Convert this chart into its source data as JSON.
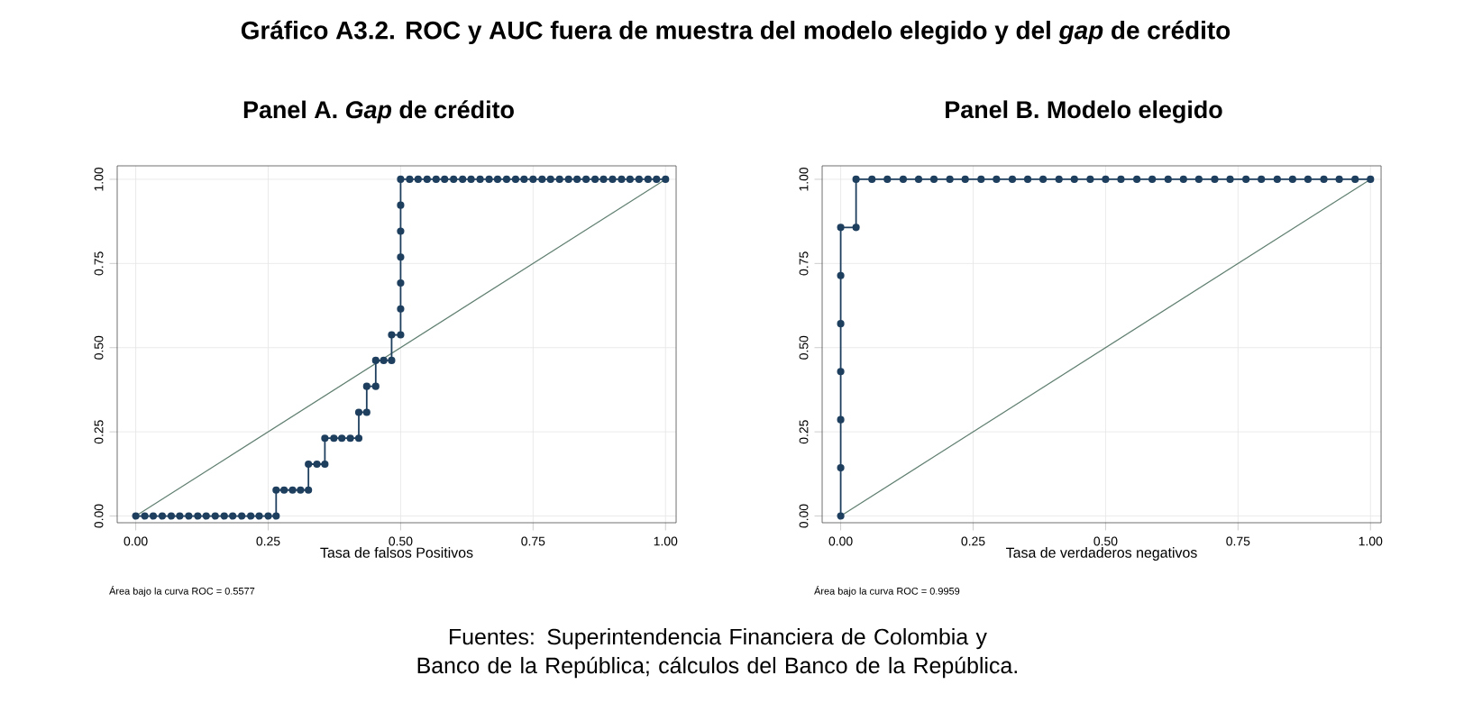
{
  "chart_data": [
    {
      "type": "line",
      "title": "Gráfico A3.2. ROC y AUC fuera de muestra del modelo elegido y del *gap* de crédito",
      "subtitle": "Panel A. *Gap* de crédito",
      "xlabel": "Tasa de falsos Positivos",
      "annotations": [
        "Área bajo la curva ROC = 0.5577",
        "Fuentes: Superintendencia Financiera de Colombia y Banco de la República; cálculos del Banco de la República."
      ],
      "xlim": [
        -0.035,
        1.02
      ],
      "ylim": [
        -0.02,
        1.04
      ],
      "xticks": [
        {
          "value": 0,
          "label": "0.00"
        },
        {
          "value": 0.25,
          "label": "0.25"
        },
        {
          "value": 0.5,
          "label": "0.50"
        },
        {
          "value": 0.75,
          "label": "0.75"
        },
        {
          "value": 1,
          "label": "1.00"
        }
      ],
      "yticks": [
        {
          "value": 0,
          "label": "0.00"
        },
        {
          "value": 0.25,
          "label": "0.25"
        },
        {
          "value": 0.5,
          "label": "0.50"
        },
        {
          "value": 0.75,
          "label": "0.75"
        },
        {
          "value": 1,
          "label": "1.00"
        }
      ],
      "grid": true,
      "series": [
        {
          "color": "#5f7f70",
          "marker": "none",
          "x": [
            0,
            1
          ],
          "values": [
            0,
            1
          ]
        },
        {
          "color": "#1f3f5f",
          "marker": "circle",
          "x": [
            0,
            0.017,
            0.033,
            0.05,
            0.067,
            0.083,
            0.1,
            0.117,
            0.133,
            0.15,
            0.167,
            0.183,
            0.2,
            0.217,
            0.233,
            0.25,
            0.265,
            0.265,
            0.28,
            0.296,
            0.311,
            0.326,
            0.326,
            0.342,
            0.357,
            0.357,
            0.374,
            0.389,
            0.405,
            0.421,
            0.421,
            0.436,
            0.436,
            0.453,
            0.453,
            0.468,
            0.483,
            0.483,
            0.5,
            0.5,
            0.5,
            0.5,
            0.5,
            0.5,
            0.5,
            0.517,
            0.533,
            0.55,
            0.567,
            0.583,
            0.6,
            0.617,
            0.633,
            0.65,
            0.667,
            0.683,
            0.7,
            0.717,
            0.733,
            0.75,
            0.767,
            0.783,
            0.8,
            0.817,
            0.833,
            0.85,
            0.867,
            0.883,
            0.9,
            0.917,
            0.933,
            0.95,
            0.967,
            0.983,
            1.0
          ],
          "values": [
            0,
            0,
            0,
            0,
            0,
            0,
            0,
            0,
            0,
            0,
            0,
            0,
            0,
            0,
            0,
            0,
            0,
            0.077,
            0.077,
            0.077,
            0.077,
            0.077,
            0.154,
            0.154,
            0.154,
            0.231,
            0.231,
            0.231,
            0.231,
            0.231,
            0.308,
            0.308,
            0.385,
            0.385,
            0.462,
            0.462,
            0.462,
            0.538,
            0.538,
            0.615,
            0.692,
            0.769,
            0.846,
            0.923,
            1,
            1,
            1,
            1,
            1,
            1,
            1,
            1,
            1,
            1,
            1,
            1,
            1,
            1,
            1,
            1,
            1,
            1,
            1,
            1,
            1,
            1,
            1,
            1,
            1,
            1,
            1,
            1,
            1,
            1,
            1
          ]
        }
      ]
    },
    {
      "type": "line",
      "subtitle": "Panel B. Modelo elegido",
      "xlabel": "Tasa de verdaderos negativos",
      "annotations": [
        "Área bajo la curva ROC = 0.9959"
      ],
      "xlim": [
        -0.035,
        1.02
      ],
      "ylim": [
        -0.02,
        1.04
      ],
      "xticks": [
        {
          "value": 0,
          "label": "0.00"
        },
        {
          "value": 0.25,
          "label": "0.25"
        },
        {
          "value": 0.5,
          "label": "0.50"
        },
        {
          "value": 0.75,
          "label": "0.75"
        },
        {
          "value": 1,
          "label": "1.00"
        }
      ],
      "yticks": [
        {
          "value": 0,
          "label": "0.00"
        },
        {
          "value": 0.25,
          "label": "0.25"
        },
        {
          "value": 0.5,
          "label": "0.50"
        },
        {
          "value": 0.75,
          "label": "0.75"
        },
        {
          "value": 1,
          "label": "1.00"
        }
      ],
      "grid": true,
      "series": [
        {
          "color": "#5f7f70",
          "marker": "none",
          "x": [
            0,
            1
          ],
          "values": [
            0,
            1
          ]
        },
        {
          "color": "#1f3f5f",
          "marker": "circle",
          "x": [
            0,
            0,
            0,
            0,
            0,
            0,
            0,
            0.029,
            0.029,
            0.059,
            0.088,
            0.118,
            0.147,
            0.176,
            0.206,
            0.235,
            0.265,
            0.294,
            0.324,
            0.353,
            0.382,
            0.412,
            0.441,
            0.471,
            0.5,
            0.529,
            0.559,
            0.588,
            0.618,
            0.647,
            0.676,
            0.706,
            0.735,
            0.765,
            0.794,
            0.824,
            0.853,
            0.882,
            0.912,
            0.941,
            0.971,
            1.0
          ],
          "values": [
            0,
            0.143,
            0.286,
            0.429,
            0.571,
            0.714,
            0.857,
            0.857,
            1,
            1,
            1,
            1,
            1,
            1,
            1,
            1,
            1,
            1,
            1,
            1,
            1,
            1,
            1,
            1,
            1,
            1,
            1,
            1,
            1,
            1,
            1,
            1,
            1,
            1,
            1,
            1,
            1,
            1,
            1,
            1,
            1,
            1
          ]
        }
      ]
    }
  ]
}
